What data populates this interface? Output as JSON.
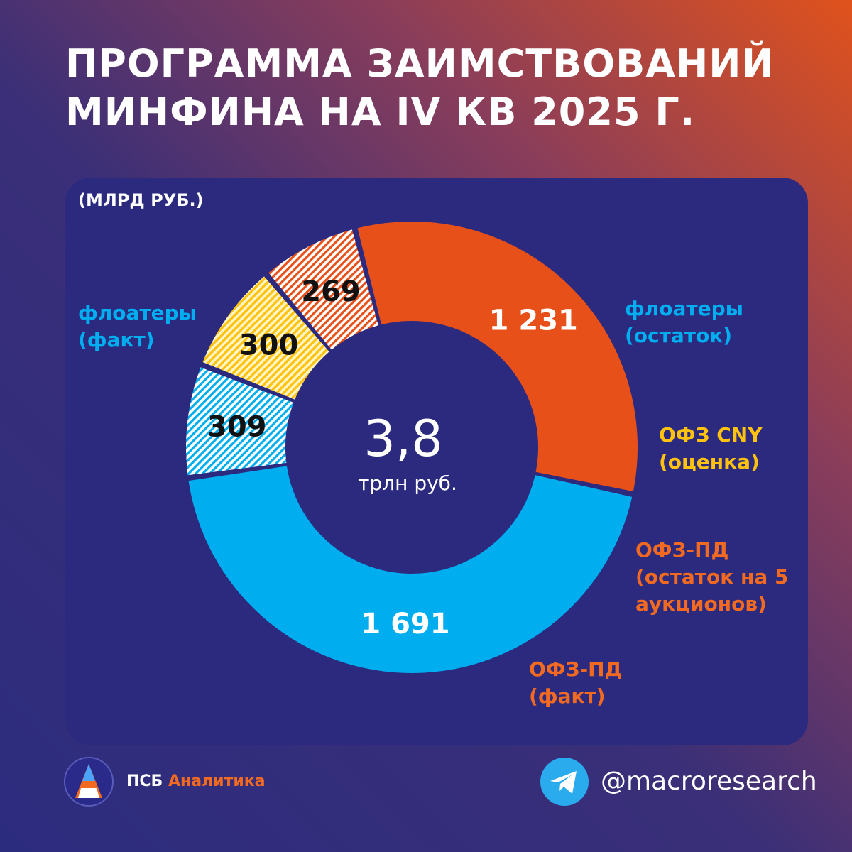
{
  "header": {
    "title_line1": "ПРОГРАММА ЗАИМСТВОВАНИЙ",
    "title_line2": "МИНФИНА НА IV КВ 2025 Г."
  },
  "unit_label": "(МЛРД РУБ.)",
  "center": {
    "value": "3,8",
    "unit": "трлн руб."
  },
  "labels": {
    "floaters_fact": [
      "флоатеры",
      "(факт)"
    ],
    "floaters_rest": [
      "флоатеры",
      "(остаток)"
    ],
    "ofz_cny": [
      "ОФЗ CNY",
      "(оценка)"
    ],
    "ofz_pd_rest": [
      "ОФЗ-ПД",
      "(остаток на 5",
      "аукционов)"
    ],
    "ofz_pd_fact": [
      "ОФЗ-ПД",
      "(факт)"
    ]
  },
  "chart_data": {
    "type": "pie",
    "variant": "donut",
    "unit": "млрд руб.",
    "total_label": "3,8 трлн руб.",
    "categories": [
      "флоатеры (факт)",
      "флоатеры (остаток)",
      "ОФЗ CNY (оценка)",
      "ОФЗ-ПД (остаток на 5 аукционов)",
      "ОФЗ-ПД (факт)"
    ],
    "values": [
      1691,
      309,
      300,
      269,
      1231
    ],
    "value_labels": [
      "1 691",
      "309",
      "300",
      "269",
      "1 231"
    ],
    "patterns": [
      "solid",
      "hatched",
      "hatched",
      "hatched",
      "solid"
    ],
    "colors": [
      "#00aeef",
      "#00aeef",
      "#ffc20e",
      "#e8501a",
      "#e8501a"
    ],
    "value_label_colors": [
      "#ffffff",
      "#111111",
      "#111111",
      "#111111",
      "#ffffff"
    ],
    "label_colors": [
      "#00aeef",
      "#00aeef",
      "#ffc20e",
      "#f26a21",
      "#f26a21"
    ]
  },
  "footer": {
    "brand_main": "ПСБ",
    "brand_accent": "Аналитика",
    "telegram_handle": "@macroresearch"
  }
}
